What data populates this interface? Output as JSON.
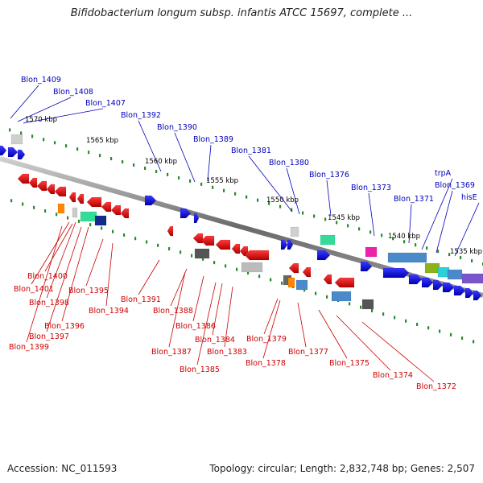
{
  "title": "Bifidobacterium longum subsp. infantis ATCC 15697, complete ...",
  "footer": {
    "accession": "Accession: NC_011593",
    "summary": "Topology: circular; Length: 2,832,748 bp; Genes: 2,507"
  },
  "colors": {
    "forward_label": "#0000bb",
    "reverse_label": "#cc0000",
    "forward_gene": "#0b0bd9",
    "reverse_gene": "#e80c0c",
    "backbone": "#8a8a8a",
    "tick": "#2a8a2a"
  },
  "scale_labels": [
    "1570 kbp",
    "1565 kbp",
    "1560 kbp",
    "1555 kbp",
    "1550 kbp",
    "1545 kbp",
    "1540 kbp",
    "1535 kbp"
  ],
  "forward_genes": [
    "Blon_1409",
    "Blon_1408",
    "Blon_1407",
    "Blon_1392",
    "Blon_1390",
    "Blon_1389",
    "Blon_1381",
    "Blon_1380",
    "Blon_1376",
    "Blon_1373",
    "Blon_1371",
    "trpA",
    "Blon_1369",
    "hisE"
  ],
  "reverse_genes": [
    "Blon_1400",
    "Blon_1401",
    "Blon_1398",
    "Blon_1397",
    "Blon_1396",
    "Blon_1399",
    "Blon_1395",
    "Blon_1394",
    "Blon_1391",
    "Blon_1388",
    "Blon_1387",
    "Blon_1386",
    "Blon_1385",
    "Blon_1384",
    "Blon_1383",
    "Blon_1379",
    "Blon_1378",
    "Blon_1377",
    "Blon_1375",
    "Blon_1374",
    "Blon_1372"
  ]
}
